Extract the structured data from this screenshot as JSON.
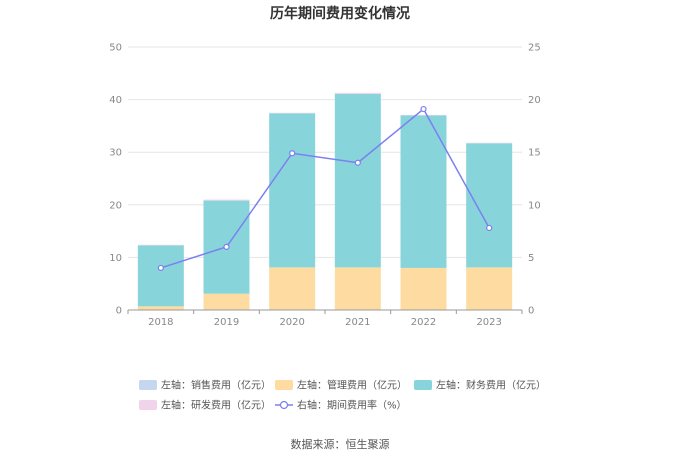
{
  "chart_data": {
    "type": "bar",
    "title": "历年期间费用变化情况",
    "categories": [
      "2018",
      "2019",
      "2020",
      "2021",
      "2022",
      "2023"
    ],
    "stacked": true,
    "left_axis": {
      "ylim": [
        0,
        50
      ],
      "ticks": [
        "0",
        "10",
        "20",
        "30",
        "40",
        "50"
      ]
    },
    "right_axis": {
      "ylim": [
        0,
        25
      ],
      "ticks": [
        "0",
        "5",
        "10",
        "15",
        "20",
        "25"
      ]
    },
    "series": [
      {
        "name": "左轴：销售费用（亿元）",
        "axis": "left",
        "type": "bar",
        "color": "#c4d7ef",
        "values": [
          0.1,
          0.1,
          0.1,
          0.1,
          0.1,
          0.1
        ]
      },
      {
        "name": "左轴：管理费用（亿元）",
        "axis": "left",
        "type": "bar",
        "color": "#fedba0",
        "values": [
          0.6,
          3.0,
          8.0,
          8.0,
          7.9,
          8.0
        ]
      },
      {
        "name": "左轴：财务费用（亿元）",
        "axis": "left",
        "type": "bar",
        "color": "#88d4db",
        "values": [
          11.6,
          17.7,
          29.3,
          33.0,
          29.0,
          23.6
        ]
      },
      {
        "name": "左轴：研发费用（亿元）",
        "axis": "left",
        "type": "bar",
        "color": "#f0d5ea",
        "values": [
          0.1,
          0.2,
          0.1,
          0.2,
          0.1,
          0.1
        ]
      },
      {
        "name": "右轴：期间费用率（%）",
        "axis": "right",
        "type": "line",
        "color": "#7b7fef",
        "values": [
          4.0,
          6.0,
          14.9,
          14.0,
          19.1,
          7.8
        ]
      }
    ],
    "grid": true,
    "legend_position": "bottom"
  },
  "source_text": "数据来源：恒生聚源"
}
